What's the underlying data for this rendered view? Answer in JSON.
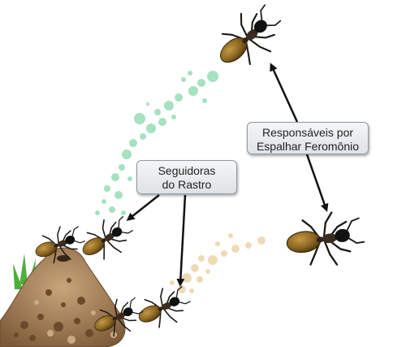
{
  "labels": {
    "followers_line1": "Seguidoras",
    "followers_line2": "do Rastro",
    "spreaders_line1": "Responsáveis por",
    "spreaders_line2": "Espalhar Feromônio"
  },
  "colors": {
    "trail_green": "#7fd6a8",
    "trail_beige": "#ecd5aa",
    "ant_body": "#2a2118",
    "ant_abdomen": "#8a6420",
    "mound": "#a9825a",
    "grass": "#4caf3a",
    "arrow": "#111111"
  },
  "icons": [
    "ant-icon",
    "anthill-icon",
    "arrow-icon"
  ]
}
